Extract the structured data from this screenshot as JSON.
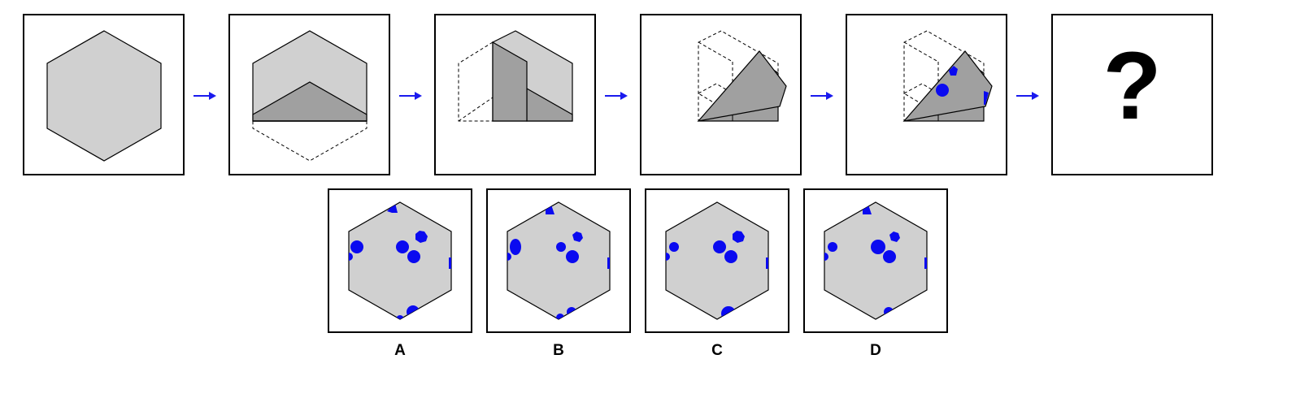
{
  "colors": {
    "face_light": "#d0d0d0",
    "face_dark": "#a0a0a0",
    "dot_blue": "#0a0af0",
    "arrow_blue": "#1a1aee",
    "stroke": "#000000"
  },
  "sequence": {
    "unknown_mark": "?"
  },
  "options": [
    {
      "label": "A"
    },
    {
      "label": "B"
    },
    {
      "label": "C"
    },
    {
      "label": "D"
    }
  ]
}
